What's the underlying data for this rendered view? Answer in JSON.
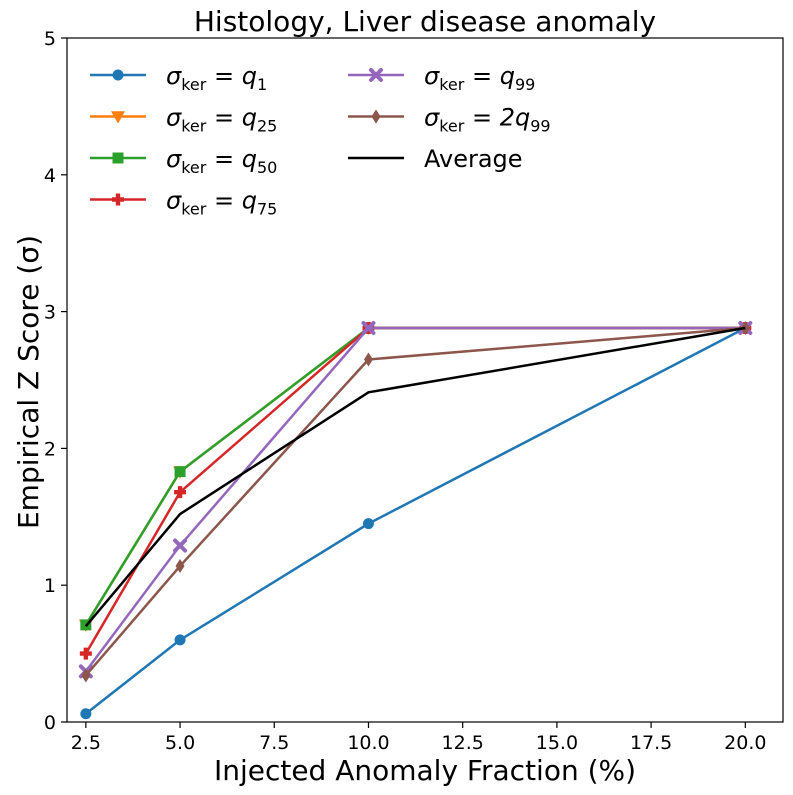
{
  "chart_data": {
    "type": "line",
    "title": "Histology, Liver disease anomaly",
    "xlabel": "Injected Anomaly Fraction (%)",
    "ylabel": "Empirical Z Score (σ)",
    "x": [
      2.5,
      5.0,
      10.0,
      20.0
    ],
    "xlim": [
      2.0,
      21.0
    ],
    "ylim": [
      0,
      5
    ],
    "xticks": [
      "2.5",
      "5.0",
      "7.5",
      "10.0",
      "12.5",
      "15.0",
      "17.5",
      "20.0"
    ],
    "yticks": [
      "0",
      "1",
      "2",
      "3",
      "4",
      "5"
    ],
    "grid": false,
    "legend_placement": "top-left",
    "series": [
      {
        "name": "σ_ker = q_1",
        "legend_sub": "ker",
        "legend_rhs": "q",
        "legend_rhs_sub": "1",
        "color": "#1f77b4",
        "marker": "circle",
        "values": [
          0.06,
          0.6,
          1.45,
          2.88
        ]
      },
      {
        "name": "σ_ker = q_25",
        "legend_sub": "ker",
        "legend_rhs": "q",
        "legend_rhs_sub": "25",
        "color": "#ff7f0e",
        "marker": "triangle-down",
        "values": [
          0.71,
          1.83,
          2.88,
          2.88
        ]
      },
      {
        "name": "σ_ker = q_50",
        "legend_sub": "ker",
        "legend_rhs": "q",
        "legend_rhs_sub": "50",
        "color": "#2ca02c",
        "marker": "square",
        "values": [
          0.71,
          1.83,
          2.88,
          2.88
        ]
      },
      {
        "name": "σ_ker = q_75",
        "legend_sub": "ker",
        "legend_rhs": "q",
        "legend_rhs_sub": "75",
        "color": "#d62728",
        "marker": "plus",
        "values": [
          0.5,
          1.68,
          2.88,
          2.88
        ]
      },
      {
        "name": "σ_ker = q_99",
        "legend_sub": "ker",
        "legend_rhs": "q",
        "legend_rhs_sub": "99",
        "color": "#9467bd",
        "marker": "x",
        "values": [
          0.37,
          1.29,
          2.88,
          2.88
        ]
      },
      {
        "name": "σ_ker = 2q_99",
        "legend_sub": "ker",
        "legend_rhs": "2q",
        "legend_rhs_sub": "99",
        "color": "#8c564b",
        "marker": "diamond",
        "values": [
          0.34,
          1.14,
          2.65,
          2.88
        ]
      },
      {
        "name": "Average",
        "legend_sub": "",
        "legend_rhs": "",
        "legend_rhs_sub": "",
        "color": "#000000",
        "marker": "none",
        "values": [
          0.7,
          1.52,
          2.41,
          2.88
        ]
      }
    ]
  }
}
